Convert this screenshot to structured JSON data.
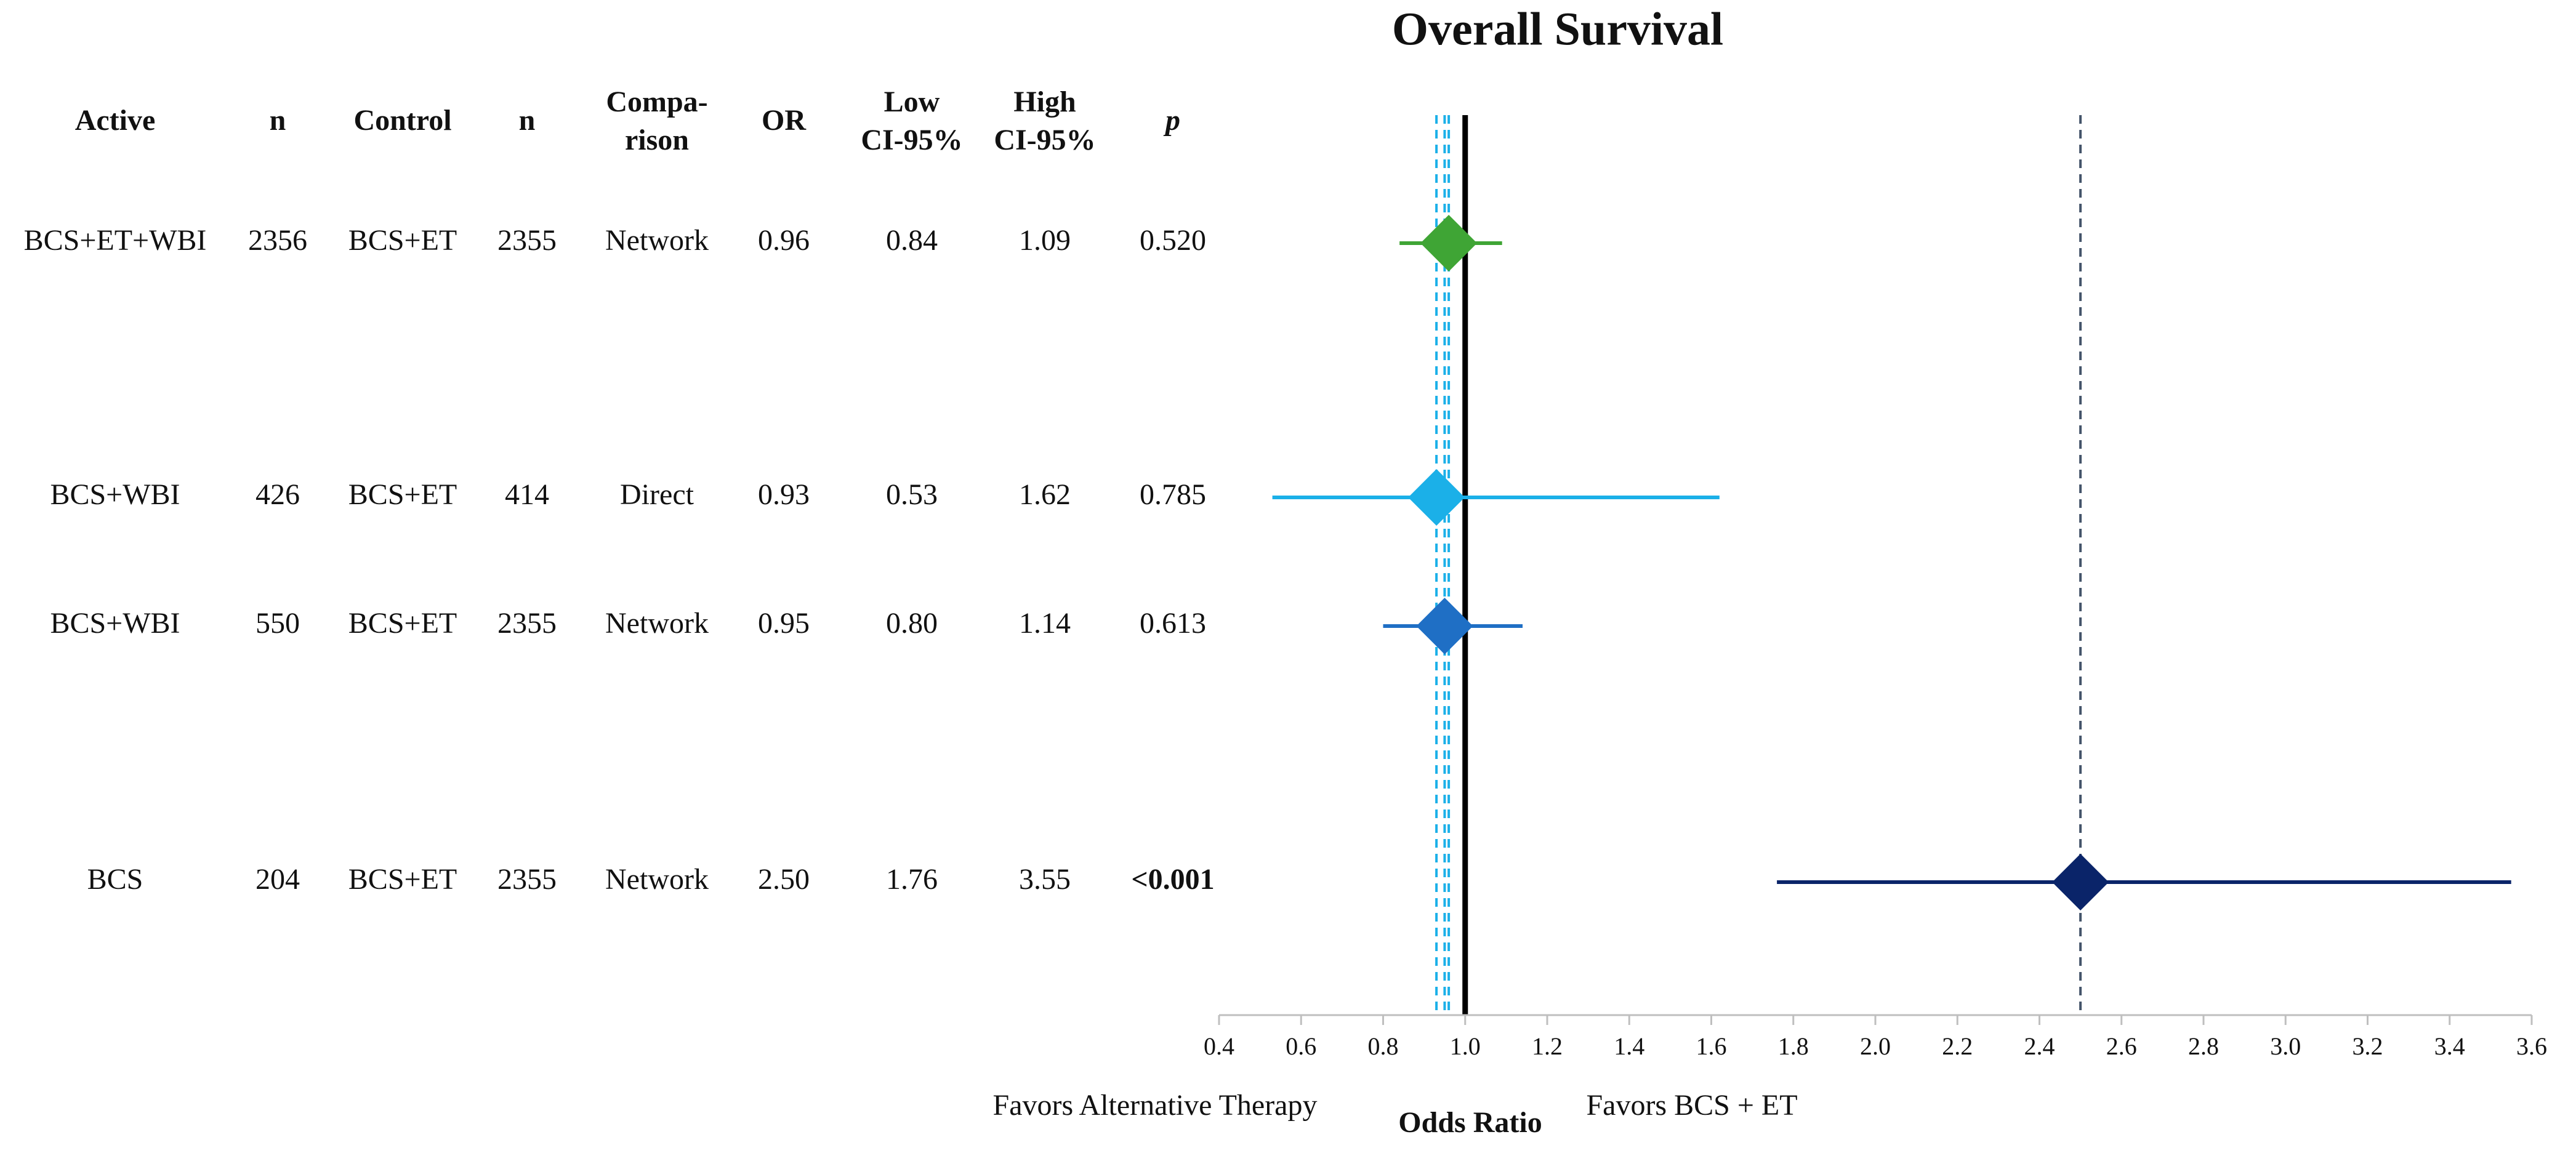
{
  "chart_data": {
    "type": "forest",
    "title": "Overall Survival",
    "headers": [
      [
        "Active"
      ],
      [
        "n"
      ],
      [
        "Control"
      ],
      [
        "n"
      ],
      [
        "Compa-",
        "rison"
      ],
      [
        "OR"
      ],
      [
        "Low",
        "CI-95%"
      ],
      [
        "High",
        "CI-95%"
      ],
      [
        "p"
      ]
    ],
    "rows": [
      [
        "BCS+ET+WBI",
        2356,
        "BCS+ET",
        2355,
        "Network"
      ],
      [
        "BCS+WBI",
        426,
        "BCS+ET",
        414,
        "Direct"
      ],
      [
        "BCS+WBI",
        550,
        "BCS+ET",
        2355,
        "Network"
      ],
      [
        "BCS",
        204,
        "BCS+ET",
        2355,
        "Network"
      ]
    ],
    "values": [
      0.96,
      0.93,
      0.95,
      2.5
    ],
    "value_labels": [
      "0.96",
      "0.93",
      "0.95",
      "2.50"
    ],
    "low": [
      0.84,
      0.53,
      0.8,
      1.76
    ],
    "low_labels": [
      "0.84",
      "0.53",
      "0.80",
      "1.76"
    ],
    "high": [
      1.09,
      1.62,
      1.14,
      3.55
    ],
    "high_labels": [
      "1.09",
      "1.62",
      "1.14",
      "3.55"
    ],
    "p": [
      "0.520",
      "0.785",
      "0.613",
      "<0.001"
    ],
    "p_bold": [
      false,
      false,
      false,
      true
    ],
    "colors": [
      "#3fa535",
      "#1bb0e8",
      "#1f6fc5",
      "#0a2469"
    ],
    "reference": {
      "value": 1,
      "label": "1.0"
    },
    "xlim": [
      0.4,
      3.6
    ],
    "xticks": [
      0.4,
      0.6,
      0.8,
      {
        "value": 1,
        "label": "1.0"
      },
      1.2,
      1.4,
      1.6,
      1.8,
      {
        "value": 2,
        "label": "2.0"
      },
      2.2,
      2.4,
      2.6,
      2.8,
      {
        "value": 3,
        "label": "3.0"
      },
      3.2,
      3.4,
      3.6
    ],
    "xlabel": "Odds Ratio",
    "left_label": "Favors Alternative Therapy",
    "right_label": "Favors BCS + ET"
  }
}
